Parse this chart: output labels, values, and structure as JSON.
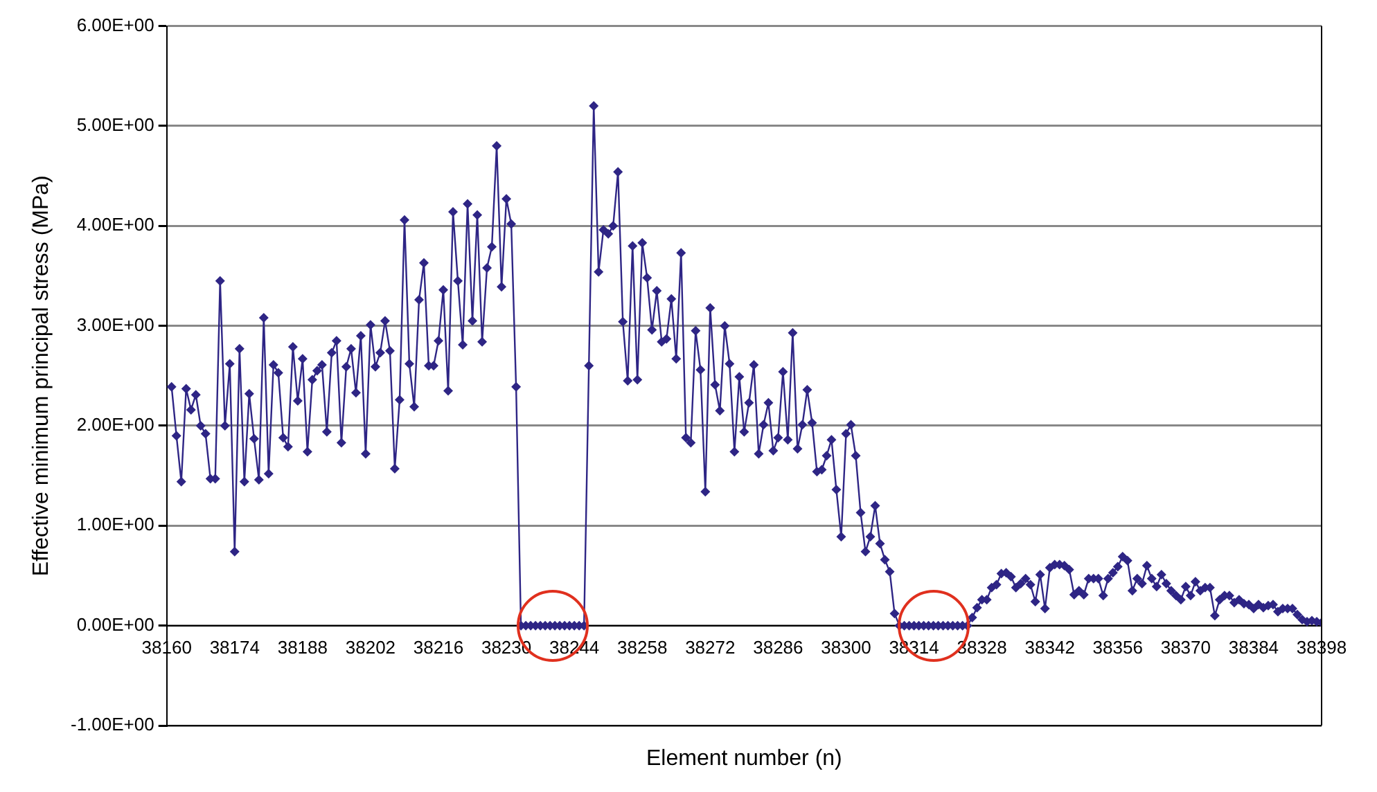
{
  "chart_data": {
    "type": "line",
    "xlabel": "Element number (n)",
    "ylabel": "Effective minimum principal stress (MPa)",
    "xlim": [
      38160,
      38398
    ],
    "xticks": [
      38160,
      38174,
      38188,
      38202,
      38216,
      38230,
      38244,
      38258,
      38272,
      38286,
      38300,
      38314,
      38328,
      38342,
      38356,
      38370,
      38384,
      38398
    ],
    "ylim": [
      -1,
      6
    ],
    "yticks": [
      {
        "value": -1,
        "label": "-1.00E+00"
      },
      {
        "value": 0,
        "label": "0.00E+00"
      },
      {
        "value": 1,
        "label": "1.00E+00"
      },
      {
        "value": 2,
        "label": "2.00E+00"
      },
      {
        "value": 3,
        "label": "3.00E+00"
      },
      {
        "value": 4,
        "label": "4.00E+00"
      },
      {
        "value": 5,
        "label": "5.00E+00"
      },
      {
        "value": 6,
        "label": "6.00E+00"
      }
    ],
    "grid": "y",
    "marker": "diamond",
    "line_style": "solid",
    "series": [
      {
        "color": "#2e2585",
        "x": [
          38161,
          38162,
          38163,
          38164,
          38165,
          38166,
          38167,
          38168,
          38169,
          38170,
          38171,
          38172,
          38173,
          38174,
          38175,
          38176,
          38177,
          38178,
          38179,
          38180,
          38181,
          38182,
          38183,
          38184,
          38185,
          38186,
          38187,
          38188,
          38189,
          38190,
          38191,
          38192,
          38193,
          38194,
          38195,
          38196,
          38197,
          38198,
          38199,
          38200,
          38201,
          38202,
          38203,
          38204,
          38205,
          38206,
          38207,
          38208,
          38209,
          38210,
          38211,
          38212,
          38213,
          38214,
          38215,
          38216,
          38217,
          38218,
          38219,
          38220,
          38221,
          38222,
          38223,
          38224,
          38225,
          38226,
          38227,
          38228,
          38229,
          38230,
          38231,
          38232,
          38233,
          38234,
          38235,
          38236,
          38237,
          38238,
          38239,
          38240,
          38241,
          38242,
          38243,
          38244,
          38245,
          38246,
          38247,
          38248,
          38249,
          38250,
          38251,
          38252,
          38253,
          38254,
          38255,
          38256,
          38257,
          38258,
          38259,
          38260,
          38261,
          38262,
          38263,
          38264,
          38265,
          38266,
          38267,
          38268,
          38269,
          38270,
          38271,
          38272,
          38273,
          38274,
          38275,
          38276,
          38277,
          38278,
          38279,
          38280,
          38281,
          38282,
          38283,
          38284,
          38285,
          38286,
          38287,
          38288,
          38289,
          38290,
          38291,
          38292,
          38293,
          38294,
          38295,
          38296,
          38297,
          38298,
          38299,
          38300,
          38301,
          38302,
          38303,
          38304,
          38305,
          38306,
          38307,
          38308,
          38309,
          38310,
          38311,
          38312,
          38313,
          38314,
          38315,
          38316,
          38317,
          38318,
          38319,
          38320,
          38321,
          38322,
          38323,
          38324,
          38325,
          38326,
          38327,
          38328,
          38329,
          38330,
          38331,
          38332,
          38333,
          38334,
          38335,
          38336,
          38337,
          38338,
          38339,
          38340,
          38341,
          38342,
          38343,
          38344,
          38345,
          38346,
          38347,
          38348,
          38349,
          38350,
          38351,
          38352,
          38353,
          38354,
          38355,
          38356,
          38357,
          38358,
          38359,
          38360,
          38361,
          38362,
          38363,
          38364,
          38365,
          38366,
          38367,
          38368,
          38369,
          38370,
          38371,
          38372,
          38373,
          38374,
          38375,
          38376,
          38377,
          38378,
          38379,
          38380,
          38381,
          38382,
          38383,
          38384,
          38385,
          38386,
          38387,
          38388,
          38389,
          38390,
          38391,
          38392,
          38393,
          38394,
          38395,
          38396,
          38397,
          38398
        ],
        "values": [
          2.39,
          1.9,
          1.44,
          2.37,
          2.16,
          2.31,
          2.0,
          1.92,
          1.47,
          1.47,
          3.45,
          2.0,
          2.62,
          0.74,
          2.77,
          1.44,
          2.32,
          1.87,
          1.46,
          3.08,
          1.52,
          2.61,
          2.53,
          1.88,
          1.79,
          2.79,
          2.25,
          2.67,
          1.74,
          2.46,
          2.55,
          2.61,
          1.94,
          2.73,
          2.85,
          1.83,
          2.59,
          2.77,
          2.33,
          2.9,
          1.72,
          3.01,
          2.59,
          2.73,
          3.05,
          2.75,
          1.57,
          2.26,
          4.06,
          2.62,
          2.19,
          3.26,
          3.63,
          2.6,
          2.6,
          2.85,
          3.36,
          2.35,
          4.14,
          3.45,
          2.81,
          4.22,
          3.05,
          4.11,
          2.84,
          3.58,
          3.79,
          4.8,
          3.39,
          4.27,
          4.02,
          2.39,
          0,
          0,
          0,
          0,
          0,
          0,
          0,
          0,
          0,
          0,
          0,
          0,
          0,
          0,
          2.6,
          5.2,
          3.54,
          3.96,
          3.92,
          4.0,
          4.54,
          3.04,
          2.45,
          3.8,
          2.46,
          3.83,
          3.48,
          2.96,
          3.35,
          2.84,
          2.87,
          3.27,
          2.67,
          3.73,
          1.88,
          1.83,
          2.95,
          2.56,
          1.34,
          3.18,
          2.41,
          2.15,
          3.0,
          2.62,
          1.74,
          2.49,
          1.94,
          2.23,
          2.61,
          1.72,
          2.01,
          2.23,
          1.75,
          1.88,
          2.54,
          1.86,
          2.93,
          1.77,
          2.01,
          2.36,
          2.03,
          1.54,
          1.56,
          1.7,
          1.86,
          1.36,
          0.89,
          1.92,
          2.01,
          1.7,
          1.13,
          0.74,
          0.89,
          1.2,
          0.82,
          0.66,
          0.54,
          0.12,
          0,
          0,
          0,
          0,
          0,
          0,
          0,
          0,
          0,
          0,
          0,
          0,
          0,
          0,
          0,
          0.08,
          0.18,
          0.26,
          0.26,
          0.38,
          0.41,
          0.52,
          0.53,
          0.49,
          0.38,
          0.42,
          0.47,
          0.41,
          0.24,
          0.51,
          0.17,
          0.58,
          0.61,
          0.61,
          0.6,
          0.56,
          0.31,
          0.35,
          0.31,
          0.47,
          0.47,
          0.47,
          0.3,
          0.47,
          0.53,
          0.59,
          0.69,
          0.65,
          0.35,
          0.47,
          0.42,
          0.6,
          0.47,
          0.39,
          0.51,
          0.42,
          0.35,
          0.3,
          0.26,
          0.39,
          0.3,
          0.44,
          0.35,
          0.38,
          0.38,
          0.1,
          0.26,
          0.3,
          0.3,
          0.23,
          0.26,
          0.22,
          0.21,
          0.17,
          0.21,
          0.18,
          0.2,
          0.21,
          0.14,
          0.17,
          0.17,
          0.17,
          0.11,
          0.06,
          0.04,
          0.05,
          0.04,
          0.03
        ]
      }
    ]
  }
}
